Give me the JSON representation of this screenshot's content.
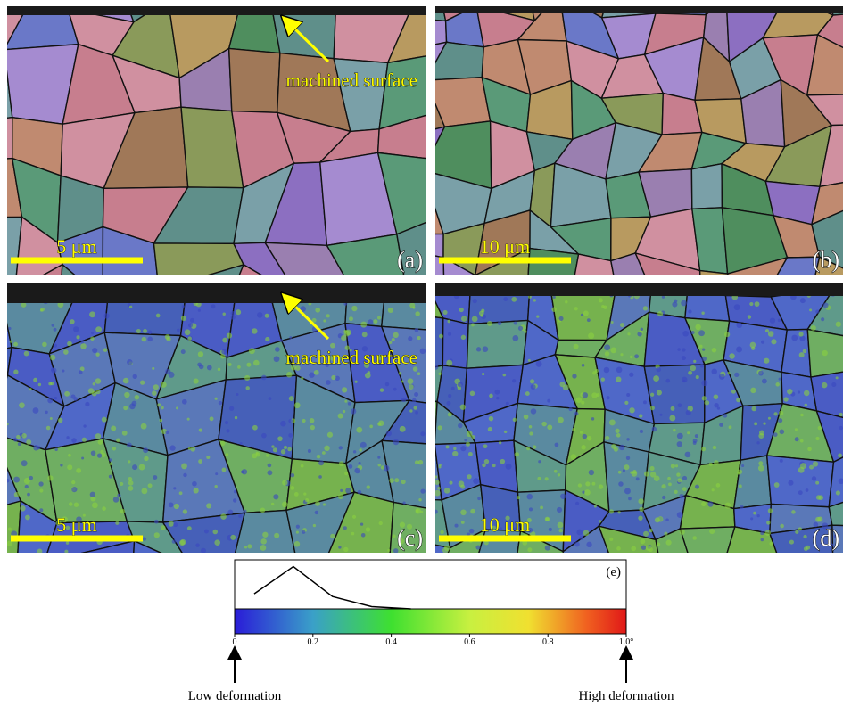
{
  "panels": [
    {
      "label": "(a)",
      "scale_bar": "5 μm",
      "annotation": "machined surface"
    },
    {
      "label": "(b)",
      "scale_bar": "10 μm"
    },
    {
      "label": "(c)",
      "scale_bar": "5 μm",
      "annotation": "machined surface"
    },
    {
      "label": "(d)",
      "scale_bar": "10 μm"
    }
  ],
  "chart_data": {
    "type": "line",
    "label": "(e)",
    "x": [
      0.05,
      0.15,
      0.25,
      0.35,
      0.45
    ],
    "values": [
      0.33,
      0.93,
      0.27,
      0.05,
      0.0
    ],
    "color": "#000000",
    "xlim": [
      0,
      1
    ],
    "ylim": [
      0,
      1
    ],
    "xticks": [
      0,
      0.2,
      0.4,
      0.6,
      0.8,
      {
        "value": 1.0,
        "label": "1.0°"
      }
    ],
    "annotations": [
      "Low deformation",
      "High deformation"
    ]
  }
}
